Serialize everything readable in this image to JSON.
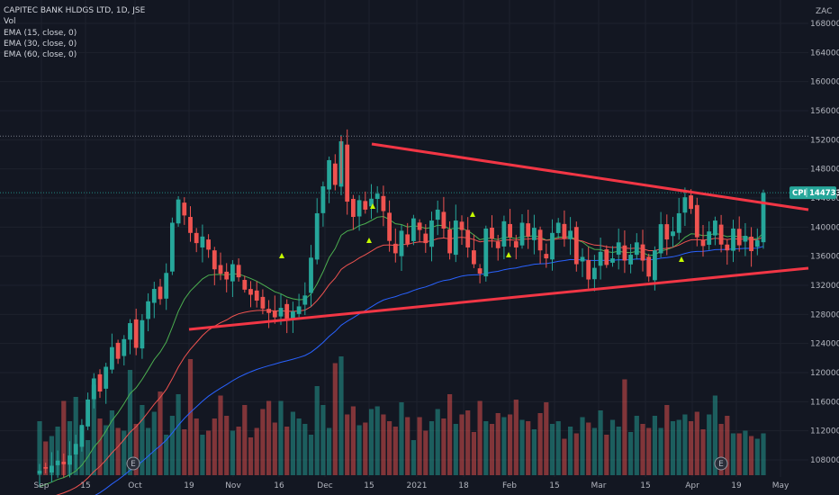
{
  "legend": {
    "title": "CAPITEC BANK HLDGS LTD, 1D, JSE",
    "vol": "Vol",
    "ema1": "EMA (15, close, 0)",
    "ema2": "EMA (30, close, 0)",
    "ema3": "EMA (60, close, 0)"
  },
  "currency": "ZAC",
  "price_badge": {
    "symbol": "CPI",
    "value": "144733"
  },
  "earnings_marker": "E",
  "colors": {
    "background": "#131722",
    "up": "#26a69a",
    "down": "#ef5350",
    "ema15": "#4caf50",
    "ema30": "#ef5350",
    "ema60": "#2962ff",
    "trendline": "#f23645",
    "signal": "#c6ff00"
  },
  "chart_data": {
    "type": "candlestick",
    "title": "CAPITEC BANK HLDGS LTD, 1D, JSE",
    "ylim": [
      106000,
      170000
    ],
    "y_ticks": [
      108000,
      112000,
      116000,
      120000,
      124000,
      128000,
      132000,
      136000,
      140000,
      144000,
      148000,
      152000,
      156000,
      160000,
      164000,
      168000
    ],
    "x_ticks": [
      "Sep",
      "15",
      "Oct",
      "19",
      "Nov",
      "16",
      "Dec",
      "15",
      "2021",
      "18",
      "Feb",
      "15",
      "Mar",
      "15",
      "Apr",
      "19",
      "May"
    ],
    "last_price": 144733,
    "resistance_level": 152500,
    "closes": [
      106500,
      106800,
      107200,
      107900,
      107400,
      108600,
      110200,
      112800,
      116300,
      119200,
      117400,
      120800,
      123500,
      121900,
      124600,
      126800,
      123400,
      127200,
      129800,
      131500,
      130100,
      133700,
      140600,
      143800,
      141600,
      139200,
      137800,
      138700,
      136900,
      134200,
      133600,
      132800,
      134900,
      133100,
      131400,
      130700,
      129900,
      128800,
      128200,
      127600,
      128900,
      127300,
      128400,
      129100,
      130600,
      135800,
      141900,
      145600,
      149200,
      145800,
      151800,
      143500,
      141400,
      143700,
      142400,
      143900,
      144600,
      142200,
      138100,
      136400,
      139500,
      137700,
      141200,
      139600,
      137800,
      140900,
      142400,
      139800,
      136400,
      140900,
      139600,
      137200,
      134900,
      133600,
      139800,
      138400,
      137100,
      140800,
      138600,
      137200,
      140600,
      138700,
      139900,
      136800,
      135700,
      139200,
      140600,
      138400,
      139500,
      134900,
      135900,
      132800,
      134400,
      136600,
      134800,
      135700,
      137900,
      135400,
      136200,
      137900,
      135400,
      133200,
      136800,
      140400,
      138300,
      139400,
      141900,
      144100,
      142500,
      138600,
      137400,
      139400,
      140900,
      137600,
      136800,
      139800,
      137500,
      138800,
      136700,
      138200,
      144700
    ],
    "volumes": [
      0.4,
      0.25,
      0.29,
      0.36,
      0.55,
      0.4,
      0.58,
      0.36,
      0.26,
      0.67,
      0.42,
      0.37,
      0.48,
      0.35,
      0.33,
      0.78,
      0.38,
      0.52,
      0.35,
      0.47,
      0.62,
      0.3,
      0.44,
      0.6,
      0.34,
      0.86,
      0.42,
      0.3,
      0.33,
      0.42,
      0.59,
      0.44,
      0.33,
      0.36,
      0.52,
      0.28,
      0.35,
      0.49,
      0.55,
      0.39,
      0.55,
      0.36,
      0.47,
      0.42,
      0.38,
      0.3,
      0.66,
      0.52,
      0.35,
      0.83,
      0.88,
      0.45,
      0.51,
      0.37,
      0.39,
      0.49,
      0.51,
      0.45,
      0.4,
      0.36,
      0.54,
      0.43,
      0.26,
      0.43,
      0.33,
      0.4,
      0.49,
      0.42,
      0.6,
      0.38,
      0.45,
      0.48,
      0.32,
      0.55,
      0.4,
      0.38,
      0.46,
      0.43,
      0.45,
      0.56,
      0.41,
      0.4,
      0.34,
      0.46,
      0.54,
      0.38,
      0.4,
      0.27,
      0.36,
      0.31,
      0.43,
      0.39,
      0.35,
      0.48,
      0.3,
      0.41,
      0.36,
      0.71,
      0.32,
      0.44,
      0.38,
      0.35,
      0.44,
      0.35,
      0.52,
      0.4,
      0.41,
      0.45,
      0.4,
      0.47,
      0.34,
      0.45,
      0.59,
      0.38,
      0.44,
      0.31,
      0.31,
      0.33,
      0.29,
      0.27,
      0.31
    ]
  }
}
